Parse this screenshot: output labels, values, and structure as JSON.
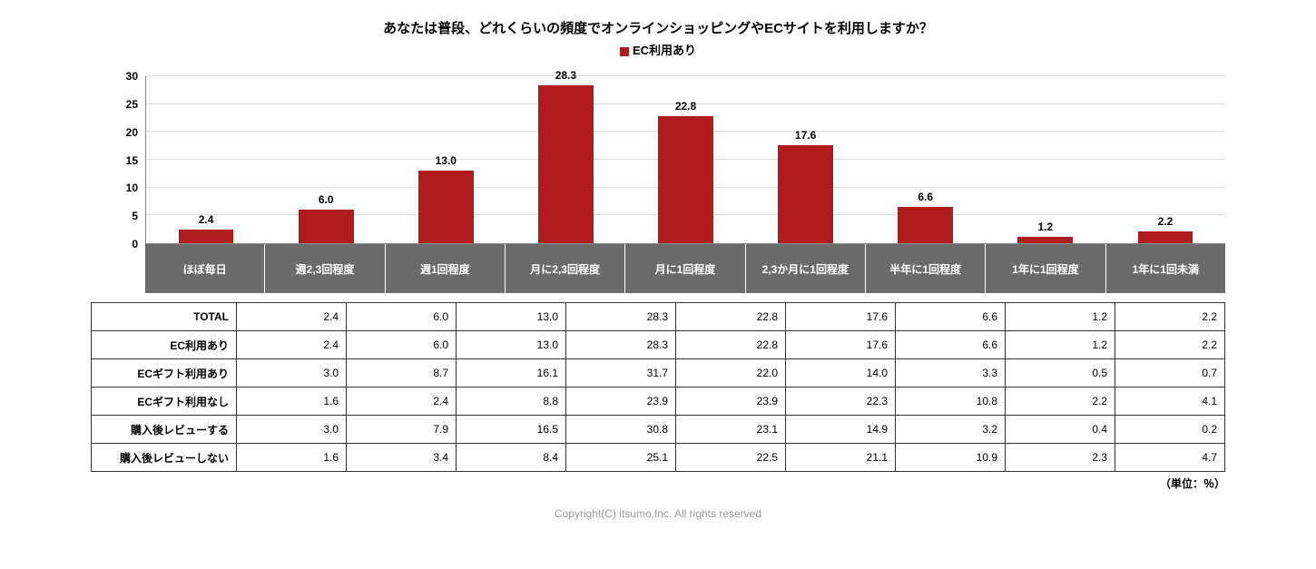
{
  "title": "あなたは普段、どれくらいの頻度でオンラインショッピングやECサイトを利用しますか？",
  "legend_label": "EC利用あり",
  "legend_color": "#b01c1c",
  "unit_label": "（単位：％）",
  "copyright": "Copyright(C) itsumo,Inc. All rights reserved",
  "chart": {
    "type": "bar",
    "ylim": [
      0,
      30
    ],
    "ytick_step": 5,
    "bar_color": "#b01c1c",
    "grid_color": "#dddddd",
    "background_color": "#ffffff",
    "cat_header_bg": "#6b6b6b",
    "cat_header_text": "#ffffff",
    "categories": [
      "ほぼ毎日",
      "週2,3回程度",
      "週1回程度",
      "月に2,3回程度",
      "月に1回程度",
      "2,3か月に1回程度",
      "半年に1回程度",
      "1年に1回程度",
      "1年に1回未満"
    ],
    "values": [
      2.4,
      6.0,
      13.0,
      28.3,
      22.8,
      17.6,
      6.6,
      1.2,
      2.2
    ],
    "value_labels": [
      "2.4",
      "6.0",
      "13.0",
      "28.3",
      "22.8",
      "17.6",
      "6.6",
      "1.2",
      "2.2"
    ]
  },
  "table": {
    "rows": [
      {
        "label": "TOTAL",
        "vals": [
          "2.4",
          "6.0",
          "13.0",
          "28.3",
          "22.8",
          "17.6",
          "6.6",
          "1.2",
          "2.2"
        ]
      },
      {
        "label": "EC利用あり",
        "vals": [
          "2.4",
          "6.0",
          "13.0",
          "28.3",
          "22.8",
          "17.6",
          "6.6",
          "1.2",
          "2.2"
        ]
      },
      {
        "label": "ECギフト利用あり",
        "vals": [
          "3.0",
          "8.7",
          "16.1",
          "31.7",
          "22.0",
          "14.0",
          "3.3",
          "0.5",
          "0.7"
        ]
      },
      {
        "label": "ECギフト利用なし",
        "vals": [
          "1.6",
          "2.4",
          "8.8",
          "23.9",
          "23.9",
          "22.3",
          "10.8",
          "2.2",
          "4.1"
        ]
      },
      {
        "label": "購入後レビューする",
        "vals": [
          "3.0",
          "7.9",
          "16.5",
          "30.8",
          "23.1",
          "14.9",
          "3.2",
          "0.4",
          "0.2"
        ]
      },
      {
        "label": "購入後レビューしない",
        "vals": [
          "1.6",
          "3.4",
          "8.4",
          "25.1",
          "22.5",
          "21.1",
          "10.9",
          "2.3",
          "4.7"
        ]
      }
    ]
  }
}
